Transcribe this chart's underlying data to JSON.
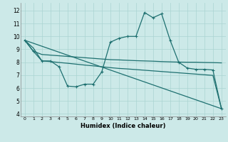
{
  "xlabel": "Humidex (Indice chaleur)",
  "bg_color": "#cce9e8",
  "grid_color": "#aad4d2",
  "line_color": "#1e7070",
  "xlim": [
    -0.5,
    23.5
  ],
  "ylim": [
    3.8,
    12.6
  ],
  "yticks": [
    4,
    5,
    6,
    7,
    8,
    9,
    10,
    11,
    12
  ],
  "xticks": [
    0,
    1,
    2,
    3,
    4,
    5,
    6,
    7,
    8,
    9,
    10,
    11,
    12,
    13,
    14,
    15,
    16,
    17,
    18,
    19,
    20,
    21,
    22,
    23
  ],
  "line1_x": [
    0,
    1,
    2,
    3,
    4,
    5,
    6,
    7,
    8,
    9,
    10,
    11,
    12,
    13,
    14,
    15,
    16,
    17,
    18,
    19,
    20,
    21,
    22,
    23
  ],
  "line1_y": [
    9.7,
    8.85,
    8.6,
    8.55,
    8.5,
    8.45,
    8.4,
    8.35,
    8.3,
    8.25,
    8.2,
    8.18,
    8.15,
    8.12,
    8.1,
    8.08,
    8.05,
    8.03,
    8.01,
    8.0,
    8.0,
    7.98,
    7.97,
    7.95
  ],
  "line2_x": [
    0,
    1,
    2,
    3,
    4,
    5,
    6,
    7,
    8,
    9,
    10,
    11,
    12,
    13,
    14,
    15,
    16,
    17,
    18,
    19,
    20,
    21,
    22,
    23
  ],
  "line2_y": [
    9.7,
    8.85,
    8.1,
    8.1,
    7.65,
    6.15,
    6.1,
    6.3,
    6.3,
    7.25,
    9.55,
    9.85,
    10.0,
    10.0,
    11.85,
    11.45,
    11.75,
    9.7,
    8.0,
    7.55,
    7.45,
    7.45,
    7.4,
    4.4
  ],
  "line3_x": [
    0,
    1,
    2,
    3,
    4,
    5,
    6,
    7,
    8,
    9,
    10,
    11,
    12,
    13,
    14,
    15,
    16,
    17,
    18,
    19,
    20,
    21,
    22,
    23
  ],
  "line3_y": [
    9.7,
    9.1,
    8.1,
    8.05,
    7.98,
    7.92,
    7.85,
    7.78,
    7.72,
    7.65,
    7.58,
    7.52,
    7.48,
    7.43,
    7.38,
    7.33,
    7.28,
    7.23,
    7.18,
    7.13,
    7.08,
    7.03,
    6.98,
    4.4
  ],
  "line4_x": [
    0,
    23
  ],
  "line4_y": [
    9.7,
    4.4
  ]
}
